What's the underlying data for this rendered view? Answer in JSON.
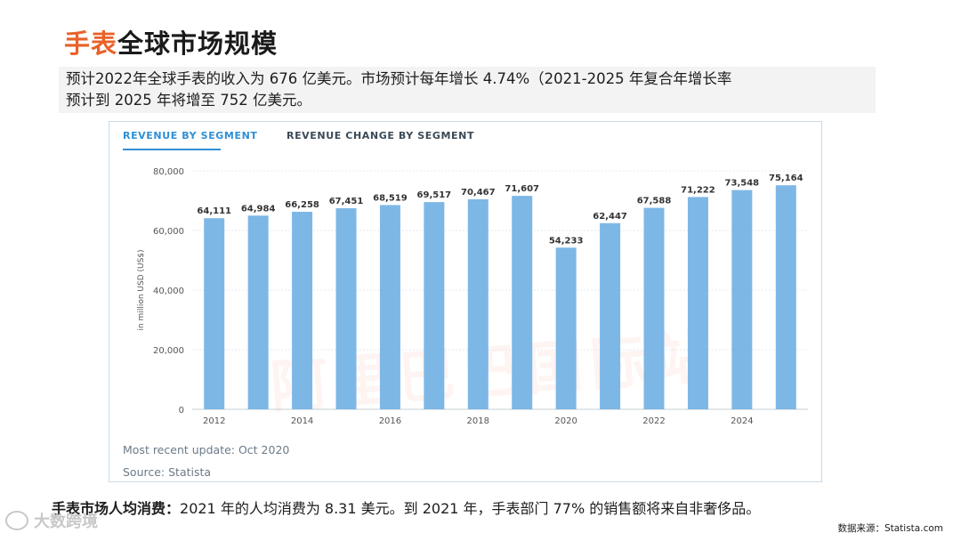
{
  "header": {
    "title_accent": "手表",
    "title_rest": "全球市场规模"
  },
  "intro": {
    "line1": "预计2022年全球手表的收入为 676 亿美元。市场预计每年增长 4.74%（2021-2025 年复合年增长率",
    "line2": "预计到 2025 年将增至 752 亿美元。"
  },
  "tabs": [
    {
      "label": "REVENUE BY SEGMENT"
    },
    {
      "label": "REVENUE CHANGE BY SEGMENT"
    }
  ],
  "chart_data": {
    "type": "bar",
    "categories": [
      "2012",
      "2013",
      "2014",
      "2015",
      "2016",
      "2017",
      "2018",
      "2019",
      "2020",
      "2021",
      "2022",
      "2023",
      "2024",
      "2025"
    ],
    "values": [
      64111,
      64984,
      66258,
      67451,
      68519,
      69517,
      70467,
      71607,
      54233,
      62447,
      67588,
      71222,
      73548,
      75164
    ],
    "value_labels": [
      "64,111",
      "64,984",
      "66,258",
      "67,451",
      "68,519",
      "69,517",
      "70,467",
      "71,607",
      "54,233",
      "62,447",
      "67,588",
      "71,222",
      "73,548",
      "75,164"
    ],
    "x_tick_labels": [
      "2012",
      "",
      "2014",
      "",
      "2016",
      "",
      "2018",
      "",
      "2020",
      "",
      "2022",
      "",
      "2024",
      ""
    ],
    "y_ticks": [
      0,
      20000,
      40000,
      60000,
      80000
    ],
    "y_tick_labels": [
      "0",
      "20,000",
      "40,000",
      "60,000",
      "80,000"
    ],
    "ylabel": "in million USD (US$)",
    "ylim": [
      0,
      80000
    ],
    "bar_color": "#7db7e6",
    "grid": true
  },
  "footer_notes": {
    "update": "Most recent update: Oct 2020",
    "source": "Source: Statista"
  },
  "bottom": {
    "lead": "手表市场人均消费：",
    "text": "2021 年的人均消费为 8.31 美元。到 2021 年，手表部门 77% 的销售额将来自非奢侈品。"
  },
  "data_source": "数据来源：Statista.com",
  "logo_text": "大数跨境",
  "watermark_text": "阿里巴巴国际站",
  "colors": {
    "accent": "#e8622a",
    "tab_active": "#2f8fd6"
  }
}
